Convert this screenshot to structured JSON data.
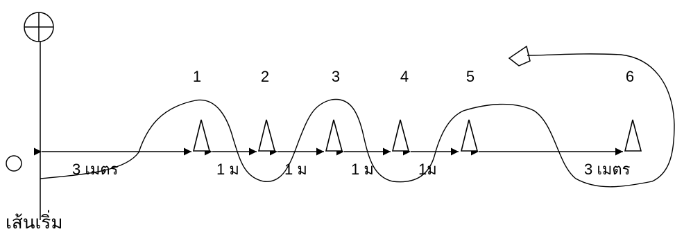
{
  "labels": {
    "start_line": "เส้นเริ่ม",
    "dist_start": "3 เมตร",
    "dist_gap_1": "1 ม",
    "dist_gap_2": "1 ม",
    "dist_gap_3": "1 ม",
    "dist_gap_4": "1ม",
    "dist_end": "3 เมตร"
  },
  "cones": [
    {
      "label": "1"
    },
    {
      "label": "2"
    },
    {
      "label": "3"
    },
    {
      "label": "4"
    },
    {
      "label": "5"
    },
    {
      "label": "6"
    }
  ]
}
